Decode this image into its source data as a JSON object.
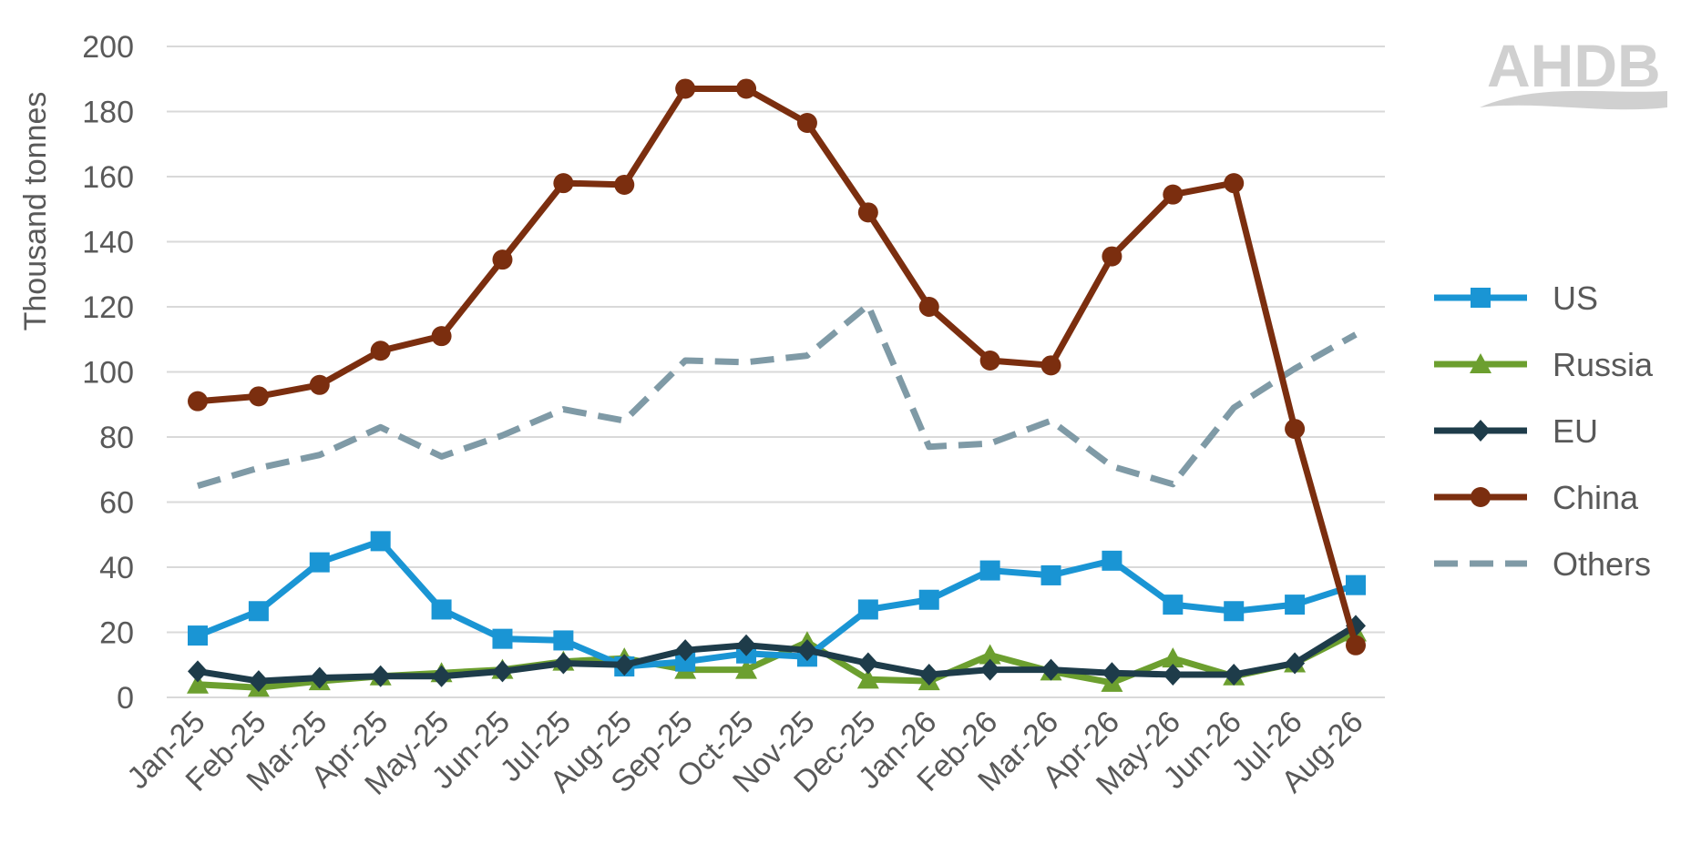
{
  "chart_data": {
    "type": "line",
    "ylabel": "Thousand tonnes",
    "xlabel": "",
    "ylim": [
      0,
      200
    ],
    "yticks": [
      0,
      20,
      40,
      60,
      80,
      100,
      120,
      140,
      160,
      180,
      200
    ],
    "grid": "horizontal",
    "legend_position": "right",
    "categories": [
      "Jan-25",
      "Feb-25",
      "Mar-25",
      "Apr-25",
      "May-25",
      "Jun-25",
      "Jul-25",
      "Aug-25",
      "Sep-25",
      "Oct-25",
      "Nov-25",
      "Dec-25",
      "Jan-26",
      "Feb-26",
      "Mar-26",
      "Apr-26",
      "May-26",
      "Jun-26",
      "Jul-26",
      "Aug-26"
    ],
    "series": [
      {
        "name": "US",
        "color": "#1a95d4",
        "marker": "square",
        "dash": false,
        "values": [
          19,
          26.5,
          41.5,
          48,
          27,
          18,
          17.5,
          9.5,
          11,
          13.5,
          12.5,
          27,
          30,
          39,
          37.5,
          42,
          28.5,
          26.5,
          28.5,
          34.5
        ]
      },
      {
        "name": "Russia",
        "color": "#6c9f2f",
        "marker": "triangle",
        "dash": false,
        "values": [
          4,
          3,
          5,
          6.5,
          7.5,
          8.5,
          11,
          12,
          8.5,
          8.5,
          17,
          5.5,
          5,
          13,
          8,
          4.5,
          12,
          6.5,
          10.5,
          20
        ]
      },
      {
        "name": "EU",
        "color": "#1e3c4a",
        "marker": "diamond",
        "dash": false,
        "values": [
          8,
          5,
          6,
          6.5,
          6.5,
          8,
          10.5,
          10,
          14.5,
          16,
          14.5,
          10.5,
          7,
          8.5,
          8.5,
          7.5,
          7,
          7,
          10.5,
          22
        ]
      },
      {
        "name": "China",
        "color": "#7b2e0f",
        "marker": "circle",
        "dash": false,
        "values": [
          91,
          92.5,
          96,
          106.5,
          111,
          134.5,
          158,
          157.5,
          187,
          187,
          176.5,
          149,
          120,
          103.5,
          102,
          135.5,
          154.5,
          158,
          82.5,
          16
        ]
      },
      {
        "name": "Others",
        "color": "#7f9aa6",
        "marker": "none",
        "dash": true,
        "values": [
          65,
          70.5,
          74.5,
          83,
          74,
          80.5,
          88.5,
          85,
          103.5,
          103,
          105,
          120.5,
          77,
          78,
          85,
          71,
          65.5,
          89,
          101,
          111.5
        ]
      }
    ]
  },
  "logo": {
    "text": "AHDB"
  }
}
